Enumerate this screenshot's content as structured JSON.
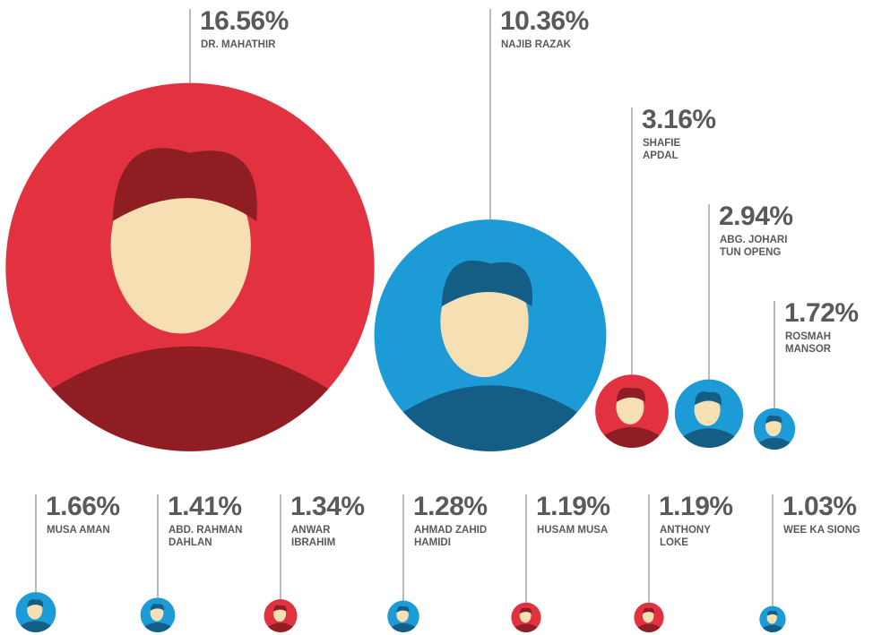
{
  "chart_data": {
    "type": "bubble",
    "categories": [
      "DR. MAHATHIR",
      "NAJIB RAZAK",
      "SHAFIE APDAL",
      "ABG. JOHARI TUN OPENG",
      "ROSMAH MANSOR",
      "MUSA AMAN",
      "ABD. RAHMAN DAHLAN",
      "ANWAR IBRAHIM",
      "AHMAD ZAHID HAMIDI",
      "HUSAM MUSA",
      "ANTHONY LOKE",
      "WEE KA SIONG"
    ],
    "values": [
      16.56,
      10.36,
      3.16,
      2.94,
      1.72,
      1.66,
      1.41,
      1.34,
      1.28,
      1.19,
      1.19,
      1.03
    ],
    "value_labels": [
      "16.56%",
      "10.36%",
      "3.16%",
      "2.94%",
      "1.72%",
      "1.66%",
      "1.41%",
      "1.34%",
      "1.28%",
      "1.19%",
      "1.19%",
      "1.03%"
    ],
    "colors": [
      "#e2323f",
      "#1d9bd7",
      "#e2323f",
      "#1d9bd7",
      "#1d9bd7",
      "#1d9bd7",
      "#1d9bd7",
      "#e2323f",
      "#1d9bd7",
      "#e2323f",
      "#e2323f",
      "#1d9bd7"
    ]
  }
}
